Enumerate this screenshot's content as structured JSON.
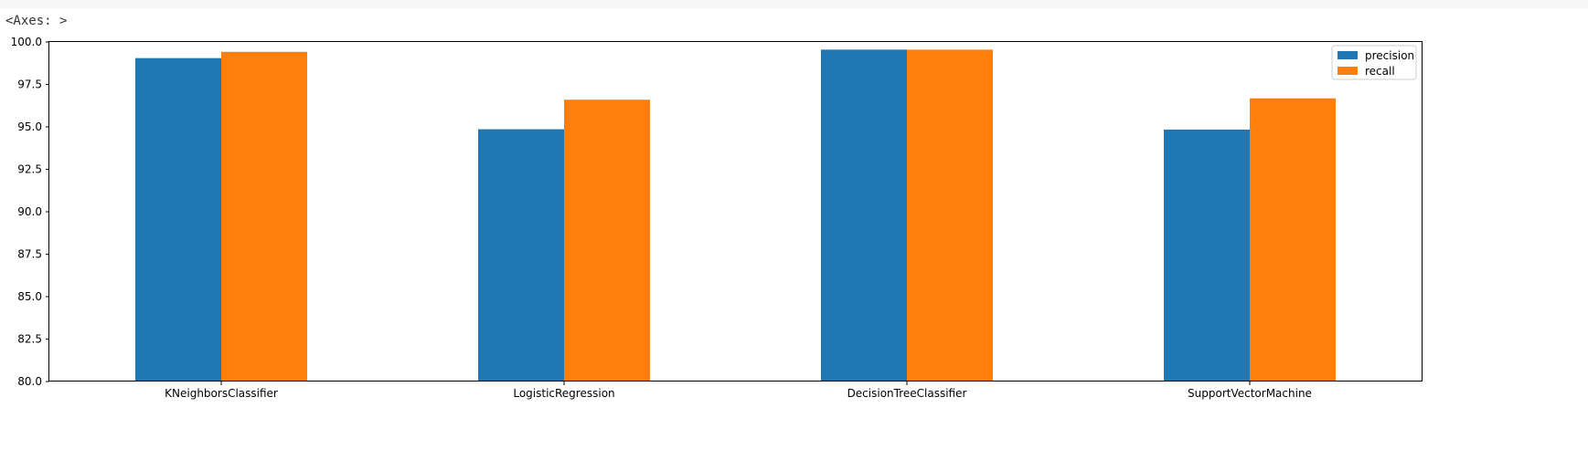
{
  "output_cell": {
    "repr_text": "<Axes: >"
  },
  "colors": {
    "precision": "#1f77b4",
    "recall": "#ff7f0e",
    "axis": "#000000"
  },
  "chart_data": {
    "type": "bar",
    "title": "",
    "xlabel": "",
    "ylabel": "",
    "categories": [
      "KNeighborsClassifier",
      "LogisticRegression",
      "DecisionTreeClassifier",
      "SupportVectorMachine"
    ],
    "series": [
      {
        "name": "precision",
        "values": [
          99.05,
          94.86,
          99.55,
          94.84
        ]
      },
      {
        "name": "recall",
        "values": [
          99.42,
          96.6,
          99.55,
          96.68
        ]
      }
    ],
    "ylim": [
      80.0,
      100.0
    ],
    "yticks": [
      "80.0",
      "82.5",
      "85.0",
      "87.5",
      "90.0",
      "92.5",
      "95.0",
      "97.5",
      "100.0"
    ],
    "legend": {
      "position": "top-right",
      "entries": [
        "precision",
        "recall"
      ]
    },
    "grid": false
  }
}
